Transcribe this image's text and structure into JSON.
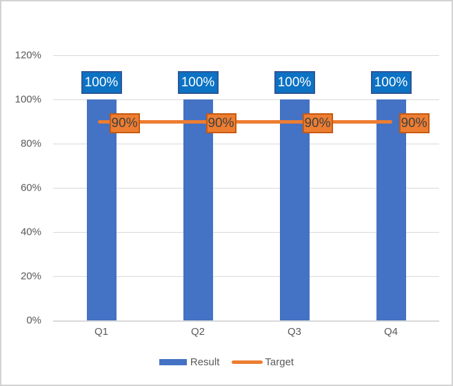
{
  "chart_data": {
    "type": "bar",
    "subtype": "combo-bar-line",
    "title": "",
    "categories": [
      "Q1",
      "Q2",
      "Q3",
      "Q4"
    ],
    "series": [
      {
        "name": "Result",
        "type": "bar",
        "values": [
          100,
          100,
          100,
          100
        ],
        "data_labels": [
          "100%",
          "100%",
          "100%",
          "100%"
        ],
        "color": "#4472C4",
        "label_fill": "#0B72C4",
        "label_border": "#2E5596",
        "label_text_color": "#FFFFFF"
      },
      {
        "name": "Target",
        "type": "line",
        "values": [
          90,
          90,
          90,
          90
        ],
        "data_labels": [
          "90%",
          "90%",
          "90%",
          "90%"
        ],
        "color": "#ED7D31",
        "label_fill": "#ED7D31",
        "label_border": "#C55A11",
        "label_text_color": "#404040"
      }
    ],
    "y_axis": {
      "ticks_top_to_bottom": [
        "120%",
        "100%",
        "80%",
        "60%",
        "40%",
        "20%",
        "0%"
      ],
      "min": 0,
      "max": 120,
      "step": 20,
      "tick_color": "#595959"
    },
    "x_axis": {
      "labels": [
        "Q1",
        "Q2",
        "Q3",
        "Q4"
      ],
      "label_color": "#595959"
    },
    "grid": true,
    "gridline_color": "#D9D9D9",
    "legend": {
      "position": "bottom",
      "entries": [
        {
          "label": "Result",
          "swatch": "bar",
          "color": "#4472C4"
        },
        {
          "label": "Target",
          "swatch": "line",
          "color": "#ED7D31"
        }
      ]
    },
    "background": "#FFFFFF",
    "frame_border_color": "#D2D2D2"
  }
}
